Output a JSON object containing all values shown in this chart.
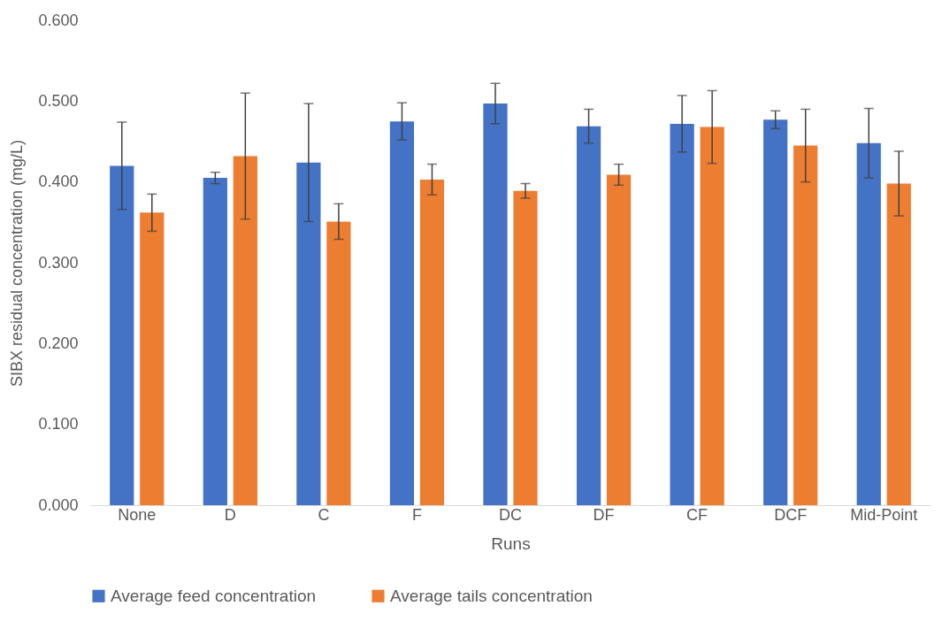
{
  "chart_data": {
    "type": "bar",
    "xlabel": "Runs",
    "ylabel": "SIBX residual concentration (mg/L)",
    "categories": [
      "None",
      "D",
      "C",
      "F",
      "DC",
      "DF",
      "CF",
      "DCF",
      "Mid-Point"
    ],
    "series": [
      {
        "name": "Average feed concentration",
        "color": "#4472c4",
        "values": [
          0.42,
          0.405,
          0.424,
          0.475,
          0.497,
          0.469,
          0.472,
          0.477,
          0.448
        ],
        "errors": [
          0.054,
          0.007,
          0.073,
          0.023,
          0.025,
          0.021,
          0.035,
          0.011,
          0.043
        ]
      },
      {
        "name": "Average tails concentration",
        "color": "#ed7d31",
        "values": [
          0.362,
          0.432,
          0.351,
          0.403,
          0.389,
          0.409,
          0.468,
          0.445,
          0.398
        ],
        "errors": [
          0.023,
          0.078,
          0.022,
          0.019,
          0.009,
          0.013,
          0.045,
          0.045,
          0.04
        ]
      }
    ],
    "ylim": [
      0,
      0.6
    ],
    "yticks": [
      {
        "value": 0,
        "label": "0.000"
      },
      {
        "value": 0.1,
        "label": "0.100"
      },
      {
        "value": 0.2,
        "label": "0.200"
      },
      {
        "value": 0.3,
        "label": "0.300"
      },
      {
        "value": 0.4,
        "label": "0.400"
      },
      {
        "value": 0.5,
        "label": "0.500"
      },
      {
        "value": 0.6,
        "label": "0.600"
      }
    ],
    "grid": false,
    "legend": "bottom"
  }
}
